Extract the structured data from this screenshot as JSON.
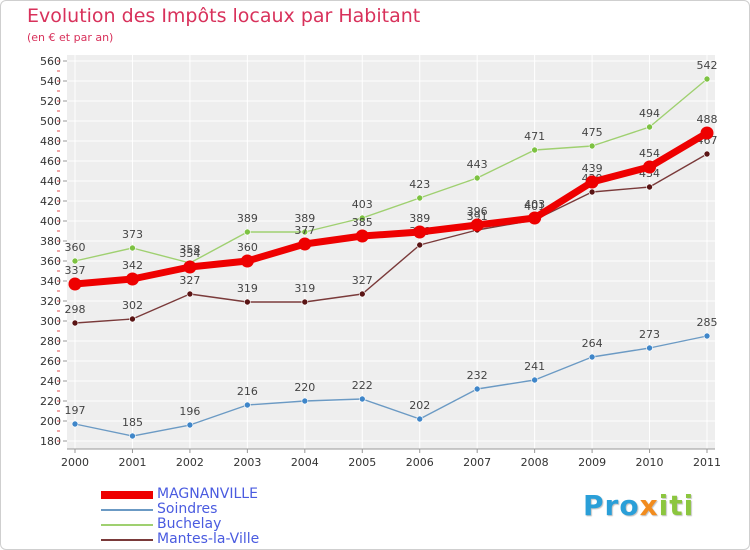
{
  "title": "Evolution des Impôts locaux par Habitant",
  "subtitle": "(en € et par an)",
  "logo": {
    "parts": [
      {
        "text": "Pro",
        "color": "#2a9fd8"
      },
      {
        "text": "x",
        "color": "#f28c1e"
      },
      {
        "text": "iti",
        "color": "#8cc63f"
      }
    ]
  },
  "chart_data": {
    "type": "line",
    "x": [
      "2000",
      "2001",
      "2002",
      "2003",
      "2004",
      "2005",
      "2006",
      "2007",
      "2008",
      "2009",
      "2010",
      "2011"
    ],
    "ylim": [
      180,
      560
    ],
    "yticks": [
      180,
      200,
      220,
      240,
      260,
      280,
      300,
      320,
      340,
      360,
      380,
      400,
      420,
      440,
      460,
      480,
      500,
      520,
      540,
      560
    ],
    "grid": true,
    "legend": "bottom-left",
    "series": [
      {
        "name": "MAGNANVILLE",
        "color": "#ee0000",
        "marker": "#ee0000",
        "values": [
          337,
          342,
          354,
          360,
          377,
          385,
          389,
          396,
          403,
          439,
          454,
          488
        ]
      },
      {
        "name": "Soindres",
        "color": "#6b9ac4",
        "marker": "#3f86c9",
        "values": [
          197,
          185,
          196,
          216,
          220,
          222,
          202,
          232,
          241,
          264,
          273,
          285
        ]
      },
      {
        "name": "Buchelay",
        "color": "#9fd070",
        "marker": "#7dc242",
        "values": [
          360,
          373,
          358,
          389,
          389,
          403,
          423,
          443,
          471,
          475,
          494,
          542
        ]
      },
      {
        "name": "Mantes-la-Ville",
        "color": "#7a3a3a",
        "marker": "#5a1414",
        "values": [
          298,
          302,
          327,
          319,
          319,
          327,
          376,
          391,
          401,
          429,
          434,
          467
        ]
      }
    ]
  }
}
